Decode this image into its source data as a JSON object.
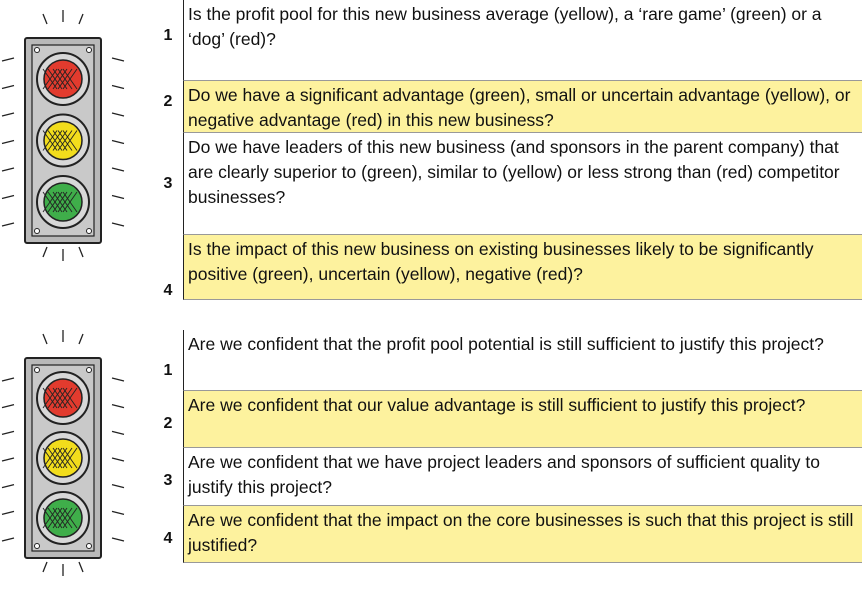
{
  "sections": [
    {
      "questions": [
        {
          "number": "1",
          "text": "Is the profit pool for this new business average (yellow), a ‘rare game’ (green) or a ‘dog’ (red)?"
        },
        {
          "number": "2",
          "text": "Do we have a significant advantage (green), small or uncertain advantage (yellow), or negative advantage (red) in this new business?"
        },
        {
          "number": "3",
          "text": "Do we have leaders of this new business (and sponsors in the parent company) that are clearly superior to (green), similar to (yellow) or less strong than (red) competitor businesses?"
        },
        {
          "number": "4",
          "text": "Is the impact of this new business on existing businesses likely to be significantly positive (green), uncertain (yellow), negative (red)?"
        }
      ]
    },
    {
      "questions": [
        {
          "number": "1",
          "text": "Are we confident that the profit pool potential is still sufficient to justify this project?"
        },
        {
          "number": "2",
          "text": "Are we confident that our value advantage is still sufficient to justify this project?"
        },
        {
          "number": "3",
          "text": "Are we confident that we have project leaders and sponsors of sufficient quality to justify this project?"
        },
        {
          "number": "4",
          "text": "Are we confident that the impact on the core businesses is such that this project is still justified?"
        }
      ]
    }
  ]
}
